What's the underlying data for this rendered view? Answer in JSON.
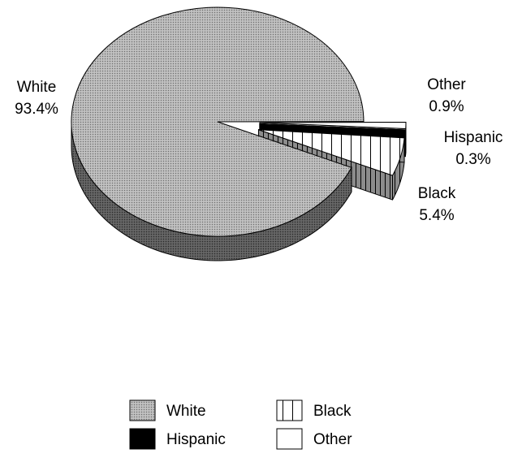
{
  "chart_data": {
    "type": "pie",
    "title": "",
    "three_d": true,
    "exploded": [
      "Black",
      "Hispanic",
      "Other"
    ],
    "slices": [
      {
        "label": "White",
        "value": 93.4,
        "value_label": "93.4%",
        "pattern": "dotted-gray"
      },
      {
        "label": "Black",
        "value": 5.4,
        "value_label": "5.4%",
        "pattern": "vertical-lines"
      },
      {
        "label": "Hispanic",
        "value": 0.3,
        "value_label": "0.3%",
        "pattern": "solid-black"
      },
      {
        "label": "Other",
        "value": 0.9,
        "value_label": "0.9%",
        "pattern": "white"
      }
    ],
    "legend": {
      "placement": "bottom",
      "entries": [
        "White",
        "Black",
        "Hispanic",
        "Other"
      ]
    }
  }
}
